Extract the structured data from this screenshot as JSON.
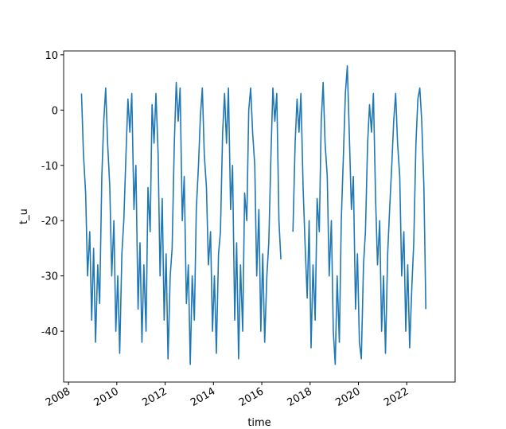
{
  "chart_data": {
    "type": "line",
    "xlabel": "time",
    "ylabel": "t_u",
    "xlim": [
      2007.8,
      2024.0
    ],
    "xticks": [
      2008,
      2010,
      2012,
      2014,
      2016,
      2018,
      2020,
      2022
    ],
    "ylim": [
      -49.2,
      10.7
    ],
    "yticks": [
      -40,
      -30,
      -20,
      -10,
      0,
      10
    ],
    "grid": false,
    "series": [
      {
        "color": "#1f77b4",
        "x": [
          2008.54,
          2008.62,
          2008.71,
          2008.79,
          2008.88,
          2008.96,
          2009.04,
          2009.12,
          2009.21,
          2009.29,
          2009.38,
          2009.46,
          2009.54,
          2009.62,
          2009.71,
          2009.79,
          2009.88,
          2009.96,
          2010.04,
          2010.12,
          2010.21,
          2010.29,
          2010.38,
          2010.46,
          2010.54,
          2010.62,
          2010.71,
          2010.79,
          2010.88,
          2010.96,
          2011.04,
          2011.12,
          2011.21,
          2011.29,
          2011.38,
          2011.46,
          2011.54,
          2011.62,
          2011.71,
          2011.79,
          2011.88,
          2011.96,
          2012.04,
          2012.12,
          2012.21,
          2012.29,
          2012.38,
          2012.46,
          2012.54,
          2012.62,
          2012.71,
          2012.79,
          2012.88,
          2012.96,
          2013.04,
          2013.12,
          2013.21,
          2013.29,
          2013.38,
          2013.46,
          2013.54,
          2013.62,
          2013.71,
          2013.79,
          2013.88,
          2013.96,
          2014.04,
          2014.12,
          2014.21,
          2014.29,
          2014.38,
          2014.46,
          2014.54,
          2014.62,
          2014.71,
          2014.79,
          2014.88,
          2014.96,
          2015.04,
          2015.12,
          2015.21,
          2015.29,
          2015.38,
          2015.46,
          2015.54,
          2015.62,
          2015.71,
          2015.79,
          2015.88,
          2015.96,
          2016.04,
          2016.12,
          2016.21,
          2016.29,
          2016.38,
          2016.46,
          2016.54,
          2016.62,
          2016.71,
          2016.79,
          2016.88,
          2016.96,
          2017.04,
          2017.12,
          2017.21,
          2017.29,
          2017.38,
          2017.46,
          2017.54,
          2017.62,
          2017.71,
          2017.79,
          2017.88,
          2017.96,
          2018.04,
          2018.12,
          2018.21,
          2018.29,
          2018.38,
          2018.46,
          2018.54,
          2018.62,
          2018.71,
          2018.79,
          2018.88,
          2018.96,
          2019.04,
          2019.12,
          2019.21,
          2019.29,
          2019.38,
          2019.46,
          2019.54,
          2019.62,
          2019.71,
          2019.79,
          2019.88,
          2019.96,
          2020.04,
          2020.12,
          2020.21,
          2020.29,
          2020.38,
          2020.46,
          2020.54,
          2020.62,
          2020.71,
          2020.79,
          2020.88,
          2020.96,
          2021.04,
          2021.12,
          2021.21,
          2021.29,
          2021.38,
          2021.46,
          2021.54,
          2021.62,
          2021.71,
          2021.79,
          2021.88,
          2021.96,
          2022.04,
          2022.12,
          2022.21,
          2022.29,
          2022.38,
          2022.46,
          2022.54,
          2022.62,
          2022.71,
          2022.79
        ],
        "values": [
          3,
          -8,
          -15,
          -30,
          -22,
          -38,
          -25,
          -42,
          -28,
          -35,
          -12,
          -2,
          4,
          -6,
          -14,
          -30,
          -20,
          -40,
          -30,
          -44,
          -26,
          -20,
          -8,
          2,
          -4,
          3,
          -18,
          -10,
          -36,
          -24,
          -42,
          -28,
          -40,
          -14,
          -22,
          1,
          -6,
          3,
          -8,
          -30,
          -16,
          -38,
          -26,
          -45,
          -30,
          -25,
          -6,
          5,
          -2,
          4,
          -20,
          -12,
          -35,
          -28,
          -46,
          -30,
          -38,
          -18,
          -10,
          -1,
          4,
          -8,
          -14,
          -28,
          -22,
          -40,
          -30,
          -44,
          -26,
          -22,
          -4,
          3,
          -6,
          4,
          -18,
          -10,
          -38,
          -24,
          -45,
          -28,
          -40,
          -15,
          -20,
          0,
          4,
          -4,
          -10,
          -30,
          -18,
          -40,
          -26,
          -42,
          -30,
          -24,
          -8,
          4,
          -2,
          3,
          -20,
          -27,
          null,
          null,
          null,
          null,
          null,
          -22,
          -6,
          2,
          -4,
          3,
          -14,
          -24,
          -34,
          -20,
          -43,
          -28,
          -38,
          -16,
          -22,
          -2,
          5,
          -6,
          -12,
          -30,
          -20,
          -40,
          -46,
          -30,
          -42,
          -20,
          -8,
          3,
          8,
          -4,
          -18,
          -12,
          -36,
          -26,
          -42,
          -45,
          -28,
          -22,
          -6,
          1,
          -4,
          3,
          -16,
          -28,
          -20,
          -40,
          -30,
          -44,
          -26,
          -18,
          -10,
          -2,
          3,
          -6,
          -12,
          -30,
          -22,
          -40,
          -28,
          -43,
          -32,
          -24,
          -6,
          2,
          4,
          -2,
          -14,
          -36
        ]
      }
    ]
  }
}
